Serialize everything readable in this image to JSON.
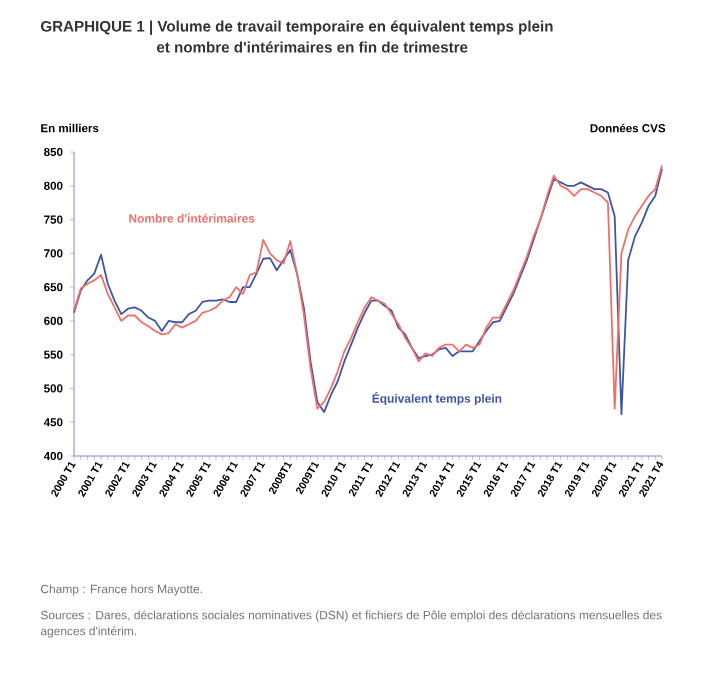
{
  "chart_data": {
    "type": "line",
    "title": "GRAPHIQUE 1 | Volume de travail temporaire en équivalent temps plein et nombre d'intérimaires en fin de trimestre",
    "ylabel": "En milliers",
    "annotations": [
      "Données CVS",
      "Champ : France hors Mayotte.",
      "Sources : Dares, déclarations sociales nominatives (DSN) et fichiers de Pôle emploi des déclarations mensuelles des agences d'intérim."
    ],
    "categories": [
      "2000 T1",
      null,
      null,
      null,
      "2001 T1",
      null,
      null,
      null,
      "2002 T1",
      null,
      null,
      null,
      "2003 T1",
      null,
      null,
      null,
      "2004 T1",
      null,
      null,
      null,
      "2005 T1",
      null,
      null,
      null,
      "2006 T1",
      null,
      null,
      null,
      "2007 T1",
      null,
      null,
      null,
      "2008T1",
      null,
      null,
      null,
      "2009T1",
      null,
      null,
      null,
      "2010 T1",
      null,
      null,
      null,
      "2011 T1",
      null,
      null,
      null,
      "2012 T1",
      null,
      null,
      null,
      "2013 T1",
      null,
      null,
      null,
      "2014 T1",
      null,
      null,
      null,
      "2015 T1",
      null,
      null,
      null,
      "2016 T1",
      null,
      null,
      null,
      "2017 T1",
      null,
      null,
      null,
      "2018 T1",
      null,
      null,
      null,
      "2019 T1",
      null,
      null,
      null,
      "2020 T1",
      null,
      null,
      null,
      "2021 T1",
      null,
      null,
      "2021 T4"
    ],
    "ylim": [
      400,
      850
    ],
    "yticks": [
      400,
      450,
      500,
      550,
      600,
      650,
      700,
      750,
      800,
      850
    ],
    "series": [
      {
        "name": "Équivalent temps plein",
        "color": "#3f55a5",
        "values": [
          612,
          645,
          660,
          670,
          698,
          655,
          630,
          610,
          618,
          620,
          615,
          605,
          600,
          585,
          600,
          598,
          598,
          610,
          615,
          628,
          630,
          630,
          632,
          628,
          628,
          650,
          650,
          670,
          692,
          693,
          675,
          690,
          705,
          670,
          620,
          540,
          480,
          465,
          490,
          510,
          540,
          565,
          590,
          612,
          630,
          630,
          622,
          615,
          590,
          580,
          560,
          545,
          548,
          550,
          558,
          560,
          548,
          555,
          555,
          555,
          570,
          585,
          598,
          600,
          620,
          640,
          665,
          690,
          720,
          750,
          780,
          810,
          805,
          800,
          800,
          805,
          800,
          795,
          795,
          790,
          755,
          462,
          690,
          725,
          745,
          770,
          785,
          825
        ]
      },
      {
        "name": "Nombre d'intérimaires",
        "color": "#f07068",
        "values": [
          615,
          648,
          655,
          660,
          668,
          640,
          620,
          600,
          608,
          608,
          598,
          592,
          585,
          580,
          582,
          595,
          590,
          595,
          600,
          612,
          615,
          620,
          630,
          635,
          650,
          640,
          668,
          672,
          720,
          700,
          690,
          685,
          718,
          670,
          610,
          530,
          470,
          480,
          500,
          525,
          555,
          575,
          598,
          620,
          635,
          630,
          625,
          610,
          595,
          575,
          560,
          540,
          552,
          548,
          560,
          565,
          565,
          555,
          565,
          560,
          565,
          590,
          605,
          605,
          625,
          645,
          670,
          695,
          725,
          750,
          785,
          815,
          800,
          795,
          785,
          795,
          795,
          790,
          785,
          775,
          470,
          700,
          735,
          755,
          770,
          785,
          795,
          830
        ]
      }
    ]
  }
}
